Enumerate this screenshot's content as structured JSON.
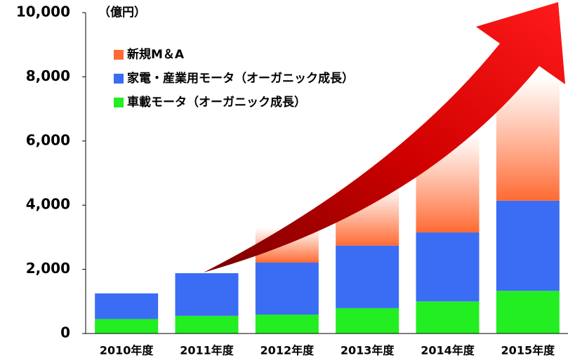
{
  "chart_data": {
    "type": "stacked-bar",
    "unit": "（億円）",
    "categories": [
      "2010年度",
      "2011年度",
      "2012年度",
      "2013年度",
      "2014年度",
      "2015年度"
    ],
    "series": [
      {
        "name": "新規M＆A",
        "color": "#ff6a33",
        "values": [
          0,
          0,
          1090,
          1860,
          3050,
          3860
        ]
      },
      {
        "name": "家電・産業用モータ（オーガニック成長）",
        "color": "#3a6cf4",
        "values": [
          800,
          1330,
          1620,
          1950,
          2150,
          2810
        ]
      },
      {
        "name": "車載モータ（オーガニック成長）",
        "color": "#22ee22",
        "values": [
          450,
          550,
          590,
          790,
          1000,
          1330
        ]
      }
    ],
    "ylim": [
      0,
      10000
    ],
    "yticks": [
      0,
      {
        "value": 2000,
        "label": "2,000"
      },
      {
        "value": 4000,
        "label": "4,000"
      },
      {
        "value": 6000,
        "label": "6,000"
      },
      {
        "value": 8000,
        "label": "8,000"
      },
      {
        "value": 10000,
        "label": "10,000"
      }
    ]
  }
}
